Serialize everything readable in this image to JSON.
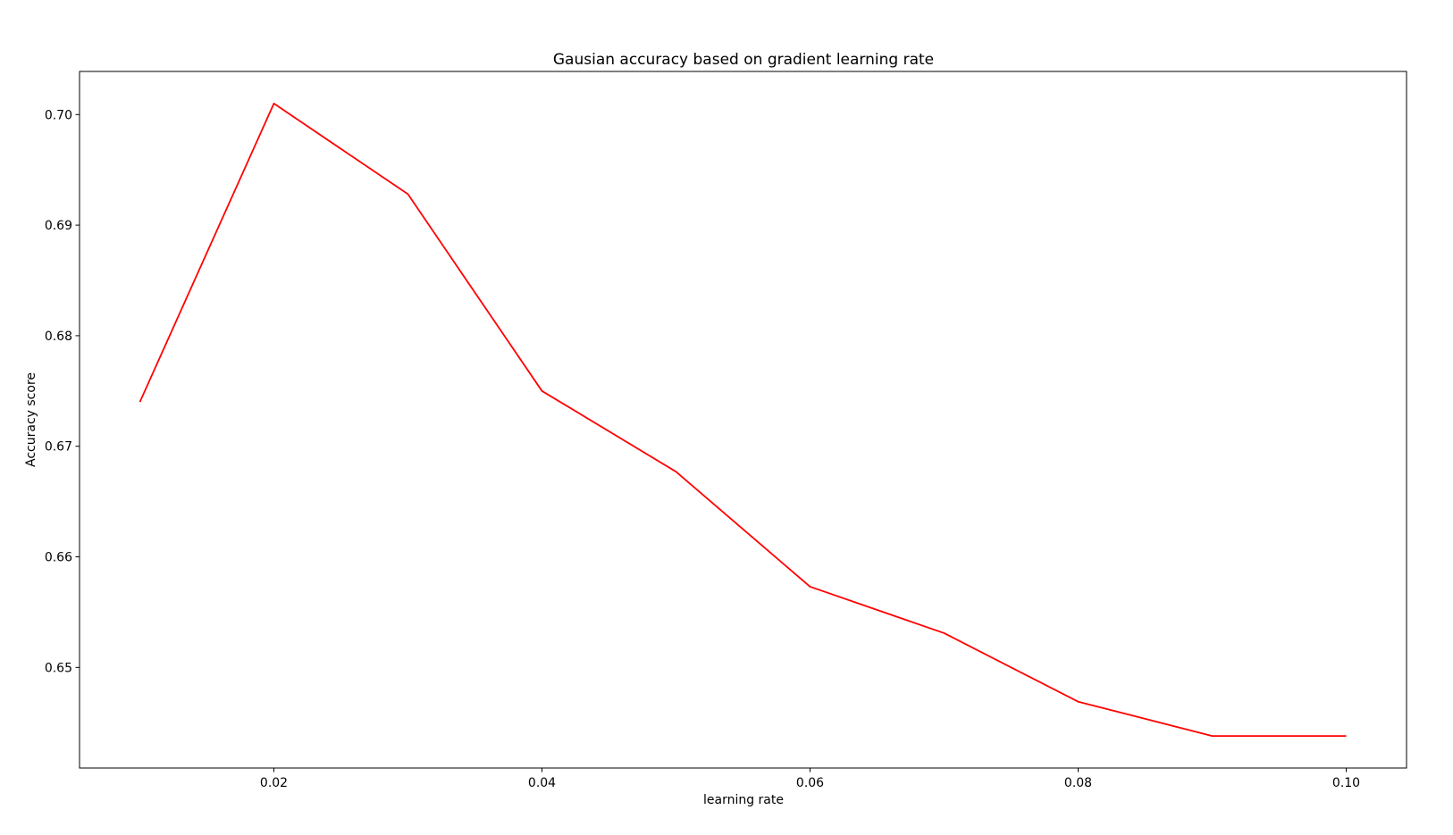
{
  "chart_data": {
    "type": "line",
    "title": "Gausian accuracy based on gradient learning rate",
    "xlabel": "learning rate",
    "ylabel": "Accuracy score",
    "x": [
      0.01,
      0.02,
      0.03,
      0.04,
      0.05,
      0.06,
      0.07,
      0.08,
      0.09,
      0.1
    ],
    "series": [
      {
        "values": [
          0.674,
          0.701,
          0.6928,
          0.675,
          0.6677,
          0.6573,
          0.6531,
          0.6469,
          0.6438,
          0.6438
        ],
        "color": "#ff0000"
      }
    ],
    "xlim": [
      0.0055,
      0.1045
    ],
    "ylim": [
      0.6409,
      0.7039
    ],
    "xticks": [
      0.02,
      0.04,
      0.06,
      0.08,
      0.1
    ],
    "xtick_labels": [
      "0.02",
      "0.04",
      "0.06",
      "0.08",
      "0.10"
    ],
    "yticks": [
      0.65,
      0.66,
      0.67,
      0.68,
      0.69,
      0.7
    ],
    "ytick_labels": [
      "0.65",
      "0.66",
      "0.67",
      "0.68",
      "0.69",
      "0.70"
    ],
    "grid": false,
    "legend": false
  }
}
